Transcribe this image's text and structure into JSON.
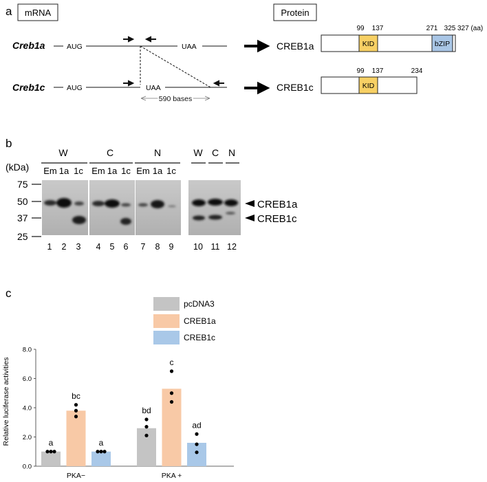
{
  "panel_a": {
    "letter": "a",
    "mrna_box": "mRNA",
    "protein_box": "Protein",
    "rows": [
      {
        "gene": "Creb1a",
        "start": "AUG",
        "stop": "UAA",
        "protein": "CREB1a"
      },
      {
        "gene": "Creb1c",
        "start": "AUG",
        "stop": "UAA",
        "protein": "CREB1c"
      }
    ],
    "deletion_label": "590 bases",
    "creb1a_positions": [
      "99",
      "137",
      "271",
      "325",
      "327 (aa)"
    ],
    "creb1c_positions": [
      "99",
      "137",
      "234"
    ],
    "domains": {
      "kid": "KID",
      "bzip": "bZIP"
    },
    "colors": {
      "kid": "#f7d064",
      "bzip": "#a9c6e6"
    }
  },
  "panel_b": {
    "letter": "b",
    "unit": "(kDa)",
    "mw_markers": [
      "75",
      "50",
      "37",
      "25"
    ],
    "groups": [
      "W",
      "C",
      "N"
    ],
    "sublanes": [
      "Em",
      "1a",
      "1c",
      "Em",
      "1a",
      "1c",
      "Em",
      "1a",
      "1c"
    ],
    "right_groups": [
      "W",
      "C",
      "N"
    ],
    "lane_numbers": [
      "1",
      "2",
      "3",
      "4",
      "5",
      "6",
      "7",
      "8",
      "9",
      "10",
      "11",
      "12"
    ],
    "band_labels": [
      "CREB1a",
      "CREB1c"
    ]
  },
  "panel_c": {
    "letter": "c",
    "legend": [
      {
        "name": "pcDNA3",
        "color": "#c4c4c4"
      },
      {
        "name": "CREB1a",
        "color": "#f8c9a6"
      },
      {
        "name": "CREB1c",
        "color": "#a9c8e8"
      }
    ]
  },
  "chart_data": {
    "type": "bar",
    "ylabel": "Relative luciferase activities",
    "ylim": [
      0,
      8
    ],
    "yticks": [
      "0.0",
      "2.0",
      "4.0",
      "6.0",
      "8.0"
    ],
    "categories": [
      "PKA−",
      "PKA +"
    ],
    "grid": false,
    "series": [
      {
        "name": "pcDNA3",
        "values": [
          1.0,
          2.6
        ],
        "letters": [
          "a",
          "bd"
        ],
        "points": [
          [
            1.0,
            1.0,
            1.0
          ],
          [
            2.1,
            2.7,
            3.2
          ]
        ]
      },
      {
        "name": "CREB1a",
        "values": [
          3.8,
          5.3
        ],
        "letters": [
          "bc",
          "c"
        ],
        "points": [
          [
            3.4,
            3.8,
            4.2
          ],
          [
            4.4,
            5.0,
            6.5
          ]
        ]
      },
      {
        "name": "CREB1c",
        "values": [
          1.0,
          1.6
        ],
        "letters": [
          "a",
          "ad"
        ],
        "points": [
          [
            1.0,
            1.0,
            1.0
          ],
          [
            0.95,
            1.5,
            2.2
          ]
        ]
      }
    ]
  }
}
